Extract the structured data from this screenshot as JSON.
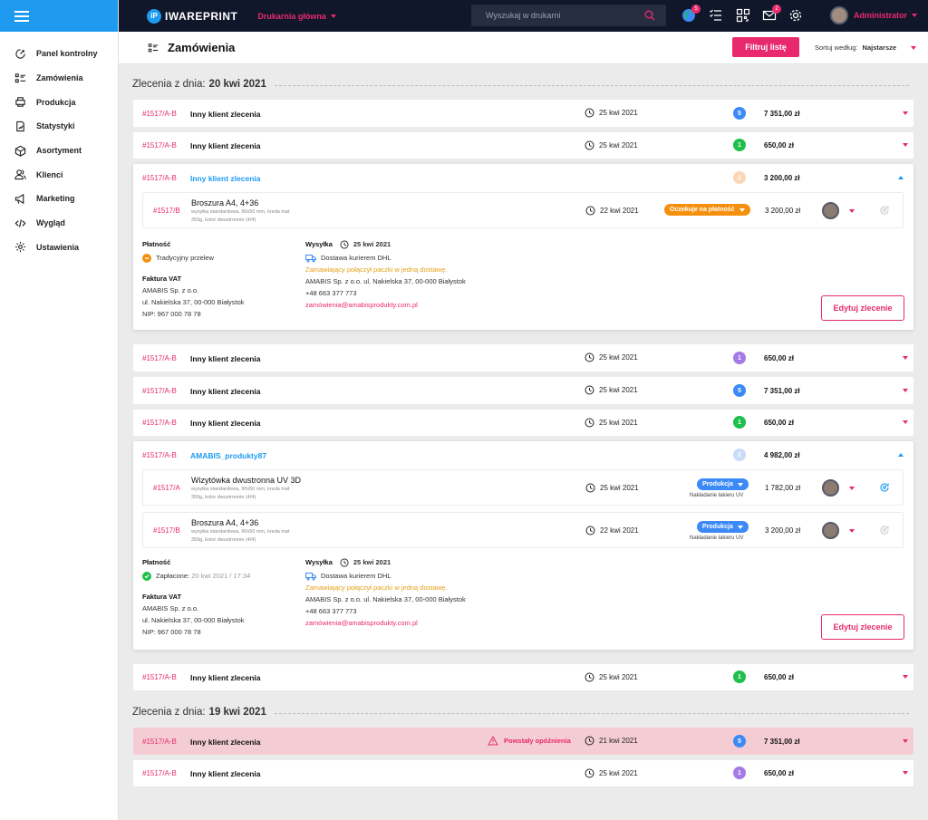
{
  "app": {
    "brand": "IWAREPRINT",
    "brand_mark": "iP",
    "printshop": "Drukarnia główna",
    "search_placeholder": "Wyszukaj w drukarni",
    "globe_badge": "5",
    "mail_badge": "2",
    "user": "Administrator"
  },
  "sidebar": {
    "items": [
      {
        "label": "Panel kontrolny",
        "icon": "dashboard-icon"
      },
      {
        "label": "Zamówienia",
        "icon": "orders-icon"
      },
      {
        "label": "Produkcja",
        "icon": "production-icon"
      },
      {
        "label": "Statystyki",
        "icon": "stats-icon"
      },
      {
        "label": "Asortyment",
        "icon": "box-icon"
      },
      {
        "label": "Klienci",
        "icon": "users-icon"
      },
      {
        "label": "Marketing",
        "icon": "megaphone-icon"
      },
      {
        "label": "Wygląd",
        "icon": "code-icon"
      },
      {
        "label": "Ustawienia",
        "icon": "gear-icon"
      }
    ]
  },
  "header": {
    "title": "Zamówienia",
    "filter_button": "Filtruj listę",
    "sort_label": "Sortuj według:",
    "sort_value": "Najstarsze"
  },
  "groups": [
    {
      "prefix": "Zlecenia z dnia:",
      "date": "20 kwi 2021"
    },
    {
      "prefix": "Zlecenia z dnia:",
      "date": "19 kwi 2021"
    }
  ],
  "orders": [
    {
      "id": "#1517/A-B",
      "client": "Inny klient zlecenia",
      "date": "25 kwi 2021",
      "count": "5",
      "count_color": "#3d8af7",
      "amount": "7 351,00 zł"
    },
    {
      "id": "#1517/A-B",
      "client": "Inny klient zlecenia",
      "date": "25 kwi 2021",
      "count": "1",
      "count_color": "#1fbf4c",
      "amount": "650,00 zł"
    },
    {
      "id": "#1517/A-B",
      "client": "Inny klient zlecenia",
      "count": "1",
      "count_color": "#fbd7b7",
      "amount": "3 200,00 zł",
      "items": [
        {
          "id": "#1517/B",
          "name": "Broszura A4, 4+36",
          "spec1": "wysyłka standardowa, 90x50 mm, kreda mat",
          "spec2": "350g, kolor dwustronnie (4/4)",
          "date": "22 kwi 2021",
          "status": "Oczekuje na płatność",
          "status_color": "#f5900f",
          "status_sub": "",
          "amount": "3 200,00 zł"
        }
      ],
      "payment": {
        "label": "Płatność",
        "method": "Tradycyjny przelew",
        "date": ""
      },
      "shipping": {
        "label": "Wysyłka",
        "date": "25 kwi 2021",
        "method": "Dostawa kurierem DHL",
        "note": "Zamawiający połączył paczki w jedną dostawę.",
        "address": "AMABIS Sp. z o.o. ul. Nakielska 37, 00-000 Białystok",
        "phone": "+48 663 377 773",
        "email": "zamówienia@amabisprodukty.com.pl"
      },
      "invoice": {
        "label": "Faktura VAT",
        "company": "AMABIS Sp. z o.o.",
        "street": "ul. Nakielska 37, 00-000 Białystok",
        "nip": "NIP: 967 000 78 78"
      },
      "edit_button": "Edytuj zlecenie"
    },
    {
      "id": "#1517/A-B",
      "client": "Inny klient zlecenia",
      "date": "25 kwi 2021",
      "count": "1",
      "count_color": "#a57ae6",
      "amount": "650,00 zł"
    },
    {
      "id": "#1517/A-B",
      "client": "Inny klient zlecenia",
      "date": "25 kwi 2021",
      "count": "5",
      "count_color": "#3d8af7",
      "amount": "7 351,00 zł"
    },
    {
      "id": "#1517/A-B",
      "client": "Inny klient zlecenia",
      "date": "25 kwi 2021",
      "count": "1",
      "count_color": "#1fbf4c",
      "amount": "650,00 zł"
    },
    {
      "id": "#1517/A-B",
      "client": "AMABIS_produkty87",
      "count": "2",
      "count_color": "#c8dcf7",
      "amount": "4 982,00 zł",
      "items": [
        {
          "id": "#1517/A",
          "name": "Wizytówka dwustronna UV 3D",
          "spec1": "wysyłka standardowa, 90x50 mm, kreda mat",
          "spec2": "350g, kolor dwustronnie (4/4)",
          "date": "25 kwi 2021",
          "status": "Produkcja",
          "status_color": "#3d8af7",
          "status_sub": "Nakładanie lakieru UV",
          "amount": "1 782,00 zł"
        },
        {
          "id": "#1517/B",
          "name": "Broszura A4, 4+36",
          "spec1": "wysyłka standardowa, 90x50 mm, kreda mat",
          "spec2": "350g, kolor dwustronnie (4/4)",
          "date": "22 kwi 2021",
          "status": "Produkcja",
          "status_color": "#3d8af7",
          "status_sub": "Nakładanie lakieru UV",
          "amount": "3 200,00 zł"
        }
      ],
      "payment": {
        "label": "Płatność",
        "method": "Zapłacone:",
        "date": "20 kwi 2021 / 17:34"
      },
      "shipping": {
        "label": "Wysyłka",
        "date": "25 kwi 2021",
        "method": "Dostawa kurierem DHL",
        "note": "Zamawiający połączył paczki w jedną dostawę.",
        "address": "AMABIS Sp. z o.o. ul. Nakielska 37, 00-000 Białystok",
        "phone": "+48 663 377 773",
        "email": "zamówienia@amabisprodukty.com.pl"
      },
      "invoice": {
        "label": "Faktura VAT",
        "company": "AMABIS Sp. z o.o.",
        "street": "ul. Nakielska 37, 00-000 Białystok",
        "nip": "NIP: 967 000 78 78"
      },
      "edit_button": "Edytuj zlecenie"
    },
    {
      "id": "#1517/A-B",
      "client": "Inny klient zlecenia",
      "date": "25 kwi 2021",
      "count": "1",
      "count_color": "#1fbf4c",
      "amount": "650,00 zł"
    },
    {
      "id": "#1517/A-B",
      "client": "Inny klient zlecenia",
      "date": "21 kwi 2021",
      "count": "5",
      "count_color": "#3d8af7",
      "amount": "7 351,00 zł",
      "warning": "Powstały opóźnienia"
    },
    {
      "id": "#1517/A-B",
      "client": "Inny klient zlecenia",
      "date": "25 kwi 2021",
      "count": "1",
      "count_color": "#a57ae6",
      "amount": "650,00 zł"
    }
  ],
  "colors": {
    "accent": "#e9296d",
    "brand_blue": "#1e9bf0",
    "topbar": "#10172b",
    "delayed_row": "#f4cdd4"
  }
}
